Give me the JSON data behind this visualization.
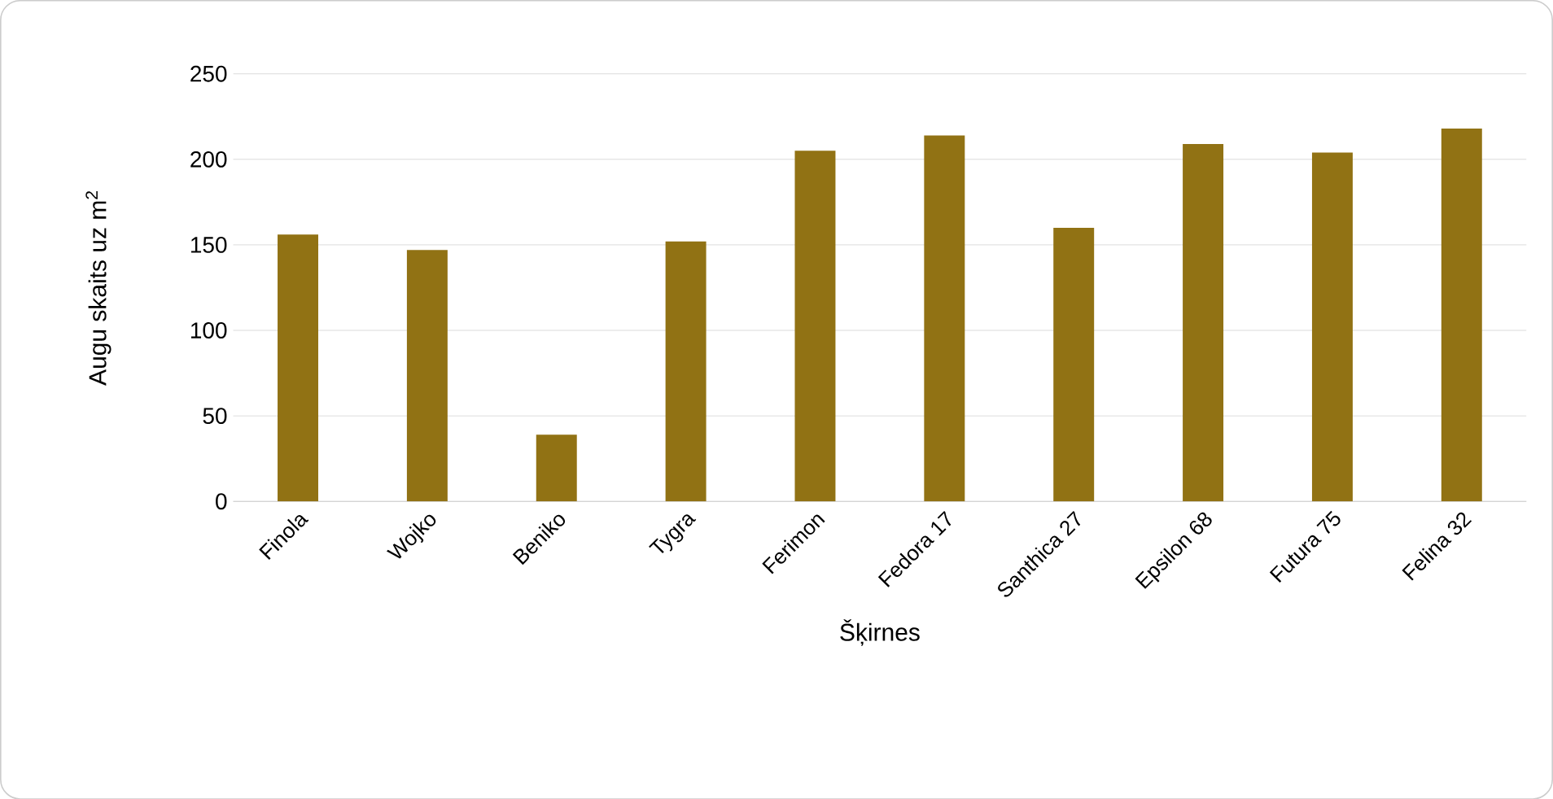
{
  "chart_data": {
    "type": "bar",
    "xlabel": "Šķirnes",
    "ylabel": "Augu skaits uz m$^{2}$",
    "categories": [
      "Finola",
      "Wojko",
      "Beniko",
      "Tygra",
      "Ferimon",
      "Fedora 17",
      "Santhica 27",
      "Epsilon 68",
      "Futura 75",
      "Felina 32"
    ],
    "values": [
      156,
      147,
      39,
      152,
      205,
      214,
      160,
      209,
      204,
      218
    ],
    "color": "#917214",
    "ylim": [
      0,
      250
    ],
    "yticks": [
      0,
      50,
      100,
      150,
      200,
      250
    ],
    "grid": "y"
  }
}
